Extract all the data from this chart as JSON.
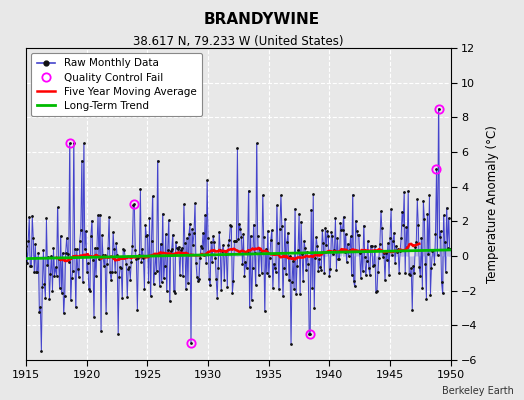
{
  "title": "BRANDYWINE",
  "subtitle": "38.617 N, 79.233 W (United States)",
  "ylabel": "Temperature Anomaly (°C)",
  "attribution": "Berkeley Earth",
  "xlim": [
    1915,
    1950
  ],
  "ylim": [
    -6,
    12
  ],
  "yticks": [
    -6,
    -4,
    -2,
    0,
    2,
    4,
    6,
    8,
    10,
    12
  ],
  "xticks": [
    1915,
    1920,
    1925,
    1930,
    1935,
    1940,
    1945,
    1950
  ],
  "fig_bg": "#e8e8e8",
  "plot_bg": "#e8e8e8",
  "raw_line_color": "#4444cc",
  "stem_color": "#8888dd",
  "raw_marker_color": "#111111",
  "moving_avg_color": "#ff0000",
  "trend_color": "#00bb00",
  "qc_fail_color": "#ff00ff",
  "n_years": 35,
  "start_year": 1915
}
